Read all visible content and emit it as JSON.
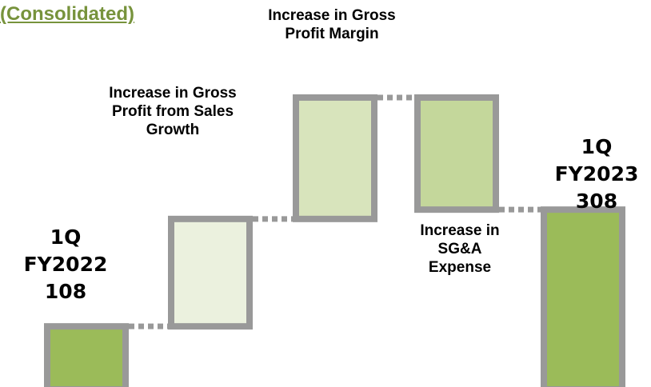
{
  "chart_data": {
    "type": "waterfall",
    "title": "(Consolidated)",
    "categories": [
      "1Q FY2022",
      "Increase in Gross Profit from Sales Growth",
      "Increase in Gross Profit Margin",
      "Increase in SG&A Expense",
      "1Q FY2023"
    ],
    "values": [
      108,
      184,
      208,
      -192,
      308
    ],
    "colors": [
      "#9bbb59",
      "#ebf1de",
      "#d8e4bc",
      "#c4d79b",
      "#9bbb59"
    ],
    "total_indices": [
      0,
      4
    ]
  }
}
